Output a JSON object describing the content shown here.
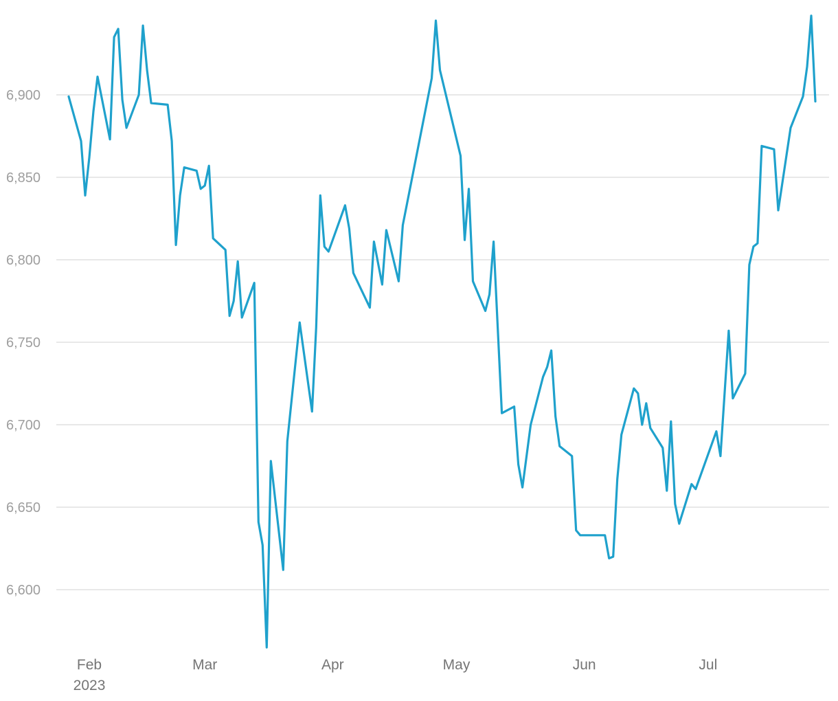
{
  "chart_data": {
    "type": "line",
    "title": "",
    "xlabel": "",
    "ylabel": "",
    "ylim": [
      6565,
      6950
    ],
    "xlim": [
      "2023-01-27",
      "2023-07-31"
    ],
    "grid": "horizontal",
    "y_ticks": [
      6600,
      6650,
      6700,
      6750,
      6800,
      6850,
      6900
    ],
    "y_tick_labels": [
      "6,600",
      "6,650",
      "6,700",
      "6,750",
      "6,800",
      "6,850",
      "6,900"
    ],
    "x_ticks": [
      {
        "date": "2023-02-01",
        "label": "Feb",
        "sublabel": "2023"
      },
      {
        "date": "2023-03-01",
        "label": "Mar"
      },
      {
        "date": "2023-04-01",
        "label": "Apr"
      },
      {
        "date": "2023-05-01",
        "label": "May"
      },
      {
        "date": "2023-06-01",
        "label": "Jun"
      },
      {
        "date": "2023-07-01",
        "label": "Jul"
      }
    ],
    "series": [
      {
        "color": "#1fa1cc",
        "points": [
          [
            "2023-01-27",
            6899
          ],
          [
            "2023-01-30",
            6872
          ],
          [
            "2023-01-31",
            6839
          ],
          [
            "2023-02-01",
            6862
          ],
          [
            "2023-02-02",
            6890
          ],
          [
            "2023-02-03",
            6911
          ],
          [
            "2023-02-06",
            6873
          ],
          [
            "2023-02-07",
            6935
          ],
          [
            "2023-02-08",
            6940
          ],
          [
            "2023-02-09",
            6897
          ],
          [
            "2023-02-10",
            6880
          ],
          [
            "2023-02-13",
            6900
          ],
          [
            "2023-02-14",
            6942
          ],
          [
            "2023-02-15",
            6915
          ],
          [
            "2023-02-16",
            6895
          ],
          [
            "2023-02-20",
            6894
          ],
          [
            "2023-02-21",
            6872
          ],
          [
            "2023-02-22",
            6809
          ],
          [
            "2023-02-23",
            6839
          ],
          [
            "2023-02-24",
            6856
          ],
          [
            "2023-02-27",
            6854
          ],
          [
            "2023-02-28",
            6843
          ],
          [
            "2023-03-01",
            6845
          ],
          [
            "2023-03-02",
            6857
          ],
          [
            "2023-03-03",
            6813
          ],
          [
            "2023-03-06",
            6806
          ],
          [
            "2023-03-07",
            6766
          ],
          [
            "2023-03-08",
            6775
          ],
          [
            "2023-03-09",
            6799
          ],
          [
            "2023-03-10",
            6765
          ],
          [
            "2023-03-13",
            6786
          ],
          [
            "2023-03-14",
            6641
          ],
          [
            "2023-03-15",
            6627
          ],
          [
            "2023-03-16",
            6565
          ],
          [
            "2023-03-17",
            6678
          ],
          [
            "2023-03-20",
            6612
          ],
          [
            "2023-03-21",
            6690
          ],
          [
            "2023-03-24",
            6762
          ],
          [
            "2023-03-27",
            6708
          ],
          [
            "2023-03-28",
            6759
          ],
          [
            "2023-03-29",
            6839
          ],
          [
            "2023-03-30",
            6808
          ],
          [
            "2023-03-31",
            6805
          ],
          [
            "2023-04-03",
            6826
          ],
          [
            "2023-04-04",
            6833
          ],
          [
            "2023-04-05",
            6819
          ],
          [
            "2023-04-06",
            6792
          ],
          [
            "2023-04-10",
            6771
          ],
          [
            "2023-04-11",
            6811
          ],
          [
            "2023-04-13",
            6785
          ],
          [
            "2023-04-14",
            6818
          ],
          [
            "2023-04-17",
            6787
          ],
          [
            "2023-04-18",
            6821
          ],
          [
            "2023-04-25",
            6910
          ],
          [
            "2023-04-26",
            6945
          ],
          [
            "2023-04-27",
            6915
          ],
          [
            "2023-05-02",
            6863
          ],
          [
            "2023-05-03",
            6812
          ],
          [
            "2023-05-04",
            6843
          ],
          [
            "2023-05-05",
            6787
          ],
          [
            "2023-05-08",
            6769
          ],
          [
            "2023-05-09",
            6779
          ],
          [
            "2023-05-10",
            6811
          ],
          [
            "2023-05-12",
            6707
          ],
          [
            "2023-05-15",
            6711
          ],
          [
            "2023-05-16",
            6676
          ],
          [
            "2023-05-17",
            6662
          ],
          [
            "2023-05-19",
            6700
          ],
          [
            "2023-05-22",
            6729
          ],
          [
            "2023-05-23",
            6735
          ],
          [
            "2023-05-24",
            6745
          ],
          [
            "2023-05-25",
            6705
          ],
          [
            "2023-05-26",
            6687
          ],
          [
            "2023-05-29",
            6681
          ],
          [
            "2023-05-30",
            6636
          ],
          [
            "2023-05-31",
            6633
          ],
          [
            "2023-06-06",
            6633
          ],
          [
            "2023-06-07",
            6619
          ],
          [
            "2023-06-08",
            6620
          ],
          [
            "2023-06-09",
            6667
          ],
          [
            "2023-06-10",
            6694
          ],
          [
            "2023-06-13",
            6722
          ],
          [
            "2023-06-14",
            6719
          ],
          [
            "2023-06-15",
            6700
          ],
          [
            "2023-06-16",
            6713
          ],
          [
            "2023-06-17",
            6698
          ],
          [
            "2023-06-20",
            6686
          ],
          [
            "2023-06-21",
            6660
          ],
          [
            "2023-06-22",
            6702
          ],
          [
            "2023-06-23",
            6652
          ],
          [
            "2023-06-24",
            6640
          ],
          [
            "2023-06-27",
            6664
          ],
          [
            "2023-06-28",
            6661
          ],
          [
            "2023-07-03",
            6696
          ],
          [
            "2023-07-04",
            6681
          ],
          [
            "2023-07-06",
            6757
          ],
          [
            "2023-07-07",
            6716
          ],
          [
            "2023-07-10",
            6731
          ],
          [
            "2023-07-11",
            6797
          ],
          [
            "2023-07-12",
            6808
          ],
          [
            "2023-07-13",
            6810
          ],
          [
            "2023-07-14",
            6869
          ],
          [
            "2023-07-17",
            6867
          ],
          [
            "2023-07-18",
            6830
          ],
          [
            "2023-07-21",
            6880
          ],
          [
            "2023-07-24",
            6899
          ],
          [
            "2023-07-25",
            6917
          ],
          [
            "2023-07-26",
            6948
          ],
          [
            "2023-07-27",
            6896
          ]
        ]
      }
    ]
  }
}
